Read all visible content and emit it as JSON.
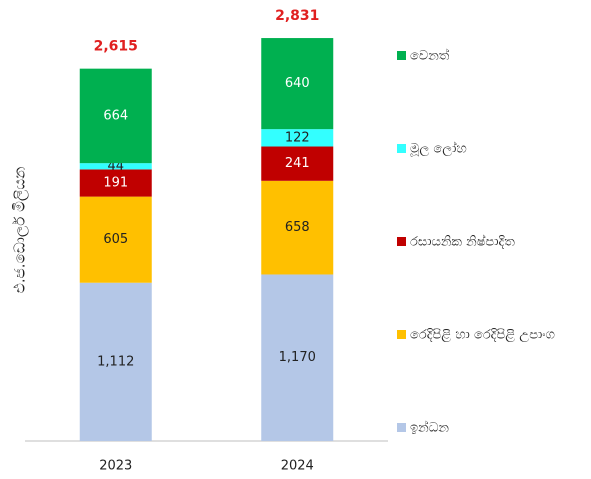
{
  "chart_data": {
    "type": "stacked_bar",
    "y_label": "එ.ජ.ඩොලර් මිලියන",
    "categories": [
      "2023",
      "2024"
    ],
    "series": [
      {
        "name": "ඉන්ධන",
        "color": "#b4c7e7",
        "label_color": "#222222",
        "values": [
          1112,
          1170
        ],
        "value_labels": [
          "1,112",
          "1,170"
        ]
      },
      {
        "name": "රෙදිපිළි හා රෙදිපිළි උපාංග",
        "color": "#ffc000",
        "label_color": "#222222",
        "values": [
          605,
          658
        ]
      },
      {
        "name": "රසායනික නිෂ්පාදිත",
        "color": "#c00000",
        "label_color": "#ffffff",
        "values": [
          191,
          241
        ]
      },
      {
        "name": "මූල ලෝහ",
        "color": "#33ffff",
        "label_color": "#222222",
        "values": [
          44,
          122
        ]
      },
      {
        "name": "වෙනත්",
        "color": "#00b050",
        "label_color": "#ffffff",
        "values": [
          664,
          640
        ]
      }
    ],
    "totals": [
      2615,
      2831
    ],
    "total_labels": [
      "2,615",
      "2,831"
    ],
    "total_color": "#e02020",
    "ylim": [
      0,
      3000
    ],
    "legend": "right"
  }
}
